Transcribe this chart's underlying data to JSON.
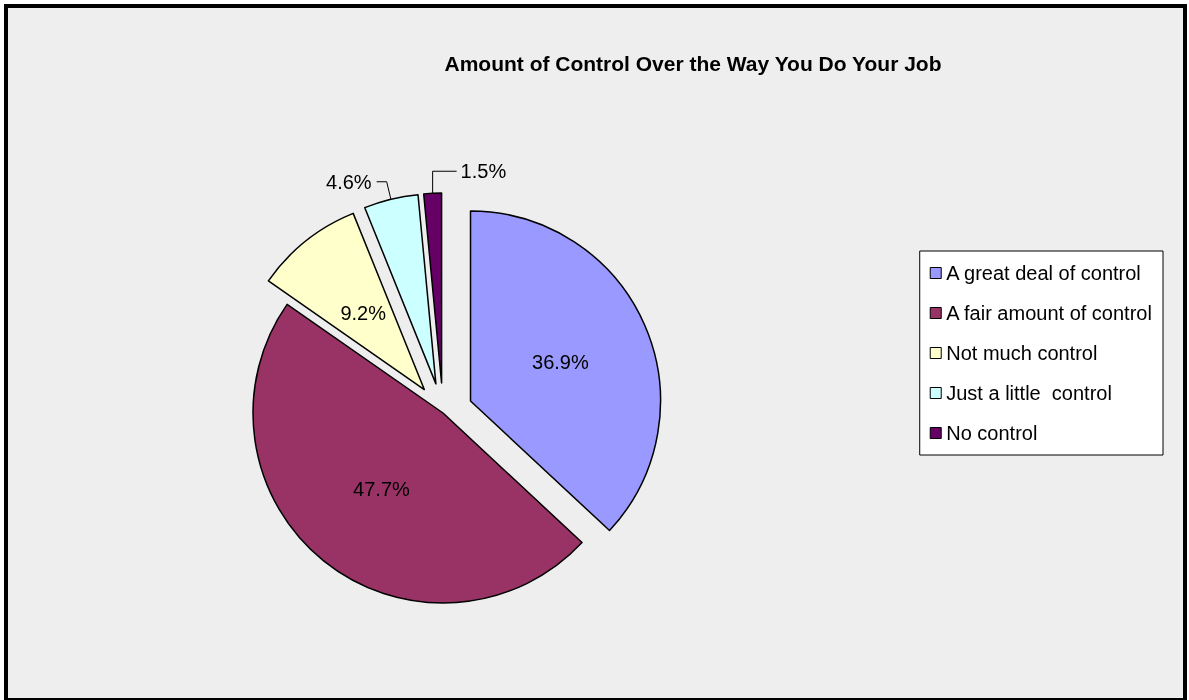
{
  "chart_data": {
    "type": "pie",
    "title": "Amount of Control Over the Way You Do Your Job",
    "categories": [
      "A great deal of control",
      "A fair amount of control",
      "Not much control",
      "Just a little  control",
      "No control"
    ],
    "values": [
      36.9,
      47.7,
      9.2,
      4.6,
      1.5
    ],
    "value_labels": [
      "36.9%",
      "47.7%",
      "9.2%",
      "4.6%",
      "1.5%"
    ],
    "colors": [
      "#9999ff",
      "#993366",
      "#ffffcc",
      "#ccffff",
      "#660066"
    ],
    "legend": "right"
  }
}
